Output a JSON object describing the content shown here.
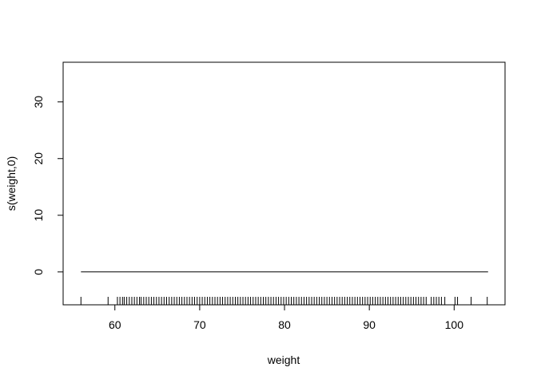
{
  "chart_data": {
    "type": "line",
    "title": "",
    "xlabel": "weight",
    "ylabel": "s(weight,0)",
    "xlim": [
      53.9,
      106
    ],
    "ylim": [
      -5.8,
      37
    ],
    "xticks": [
      60,
      70,
      80,
      90,
      100
    ],
    "yticks": [
      0,
      10,
      20,
      30
    ],
    "grid": false,
    "series": [
      {
        "x": [
          56,
          104
        ],
        "y": [
          0,
          0
        ]
      }
    ],
    "rug": [
      56,
      59.2,
      60.3,
      60.6,
      60.9,
      61.1,
      61.4,
      61.7,
      62.0,
      62.3,
      62.6,
      62.9,
      63.1,
      63.4,
      63.7,
      64.0,
      64.3,
      64.6,
      64.9,
      65.2,
      65.5,
      65.8,
      66.1,
      66.4,
      66.7,
      67.0,
      67.3,
      67.6,
      67.9,
      68.2,
      68.5,
      68.8,
      69.1,
      69.4,
      69.7,
      70.0,
      70.3,
      70.6,
      70.9,
      71.2,
      71.5,
      71.8,
      72.1,
      72.4,
      72.7,
      73.0,
      73.3,
      73.6,
      73.9,
      74.2,
      74.5,
      74.8,
      75.1,
      75.4,
      75.7,
      76.0,
      76.3,
      76.6,
      76.9,
      77.2,
      77.5,
      77.8,
      78.1,
      78.4,
      78.7,
      79.0,
      79.3,
      79.6,
      79.9,
      80.2,
      80.5,
      80.8,
      81.1,
      81.4,
      81.7,
      82.0,
      82.3,
      82.6,
      82.9,
      83.2,
      83.5,
      83.8,
      84.1,
      84.4,
      84.7,
      85.0,
      85.3,
      85.6,
      85.9,
      86.2,
      86.5,
      86.8,
      87.1,
      87.4,
      87.7,
      88.0,
      88.3,
      88.6,
      88.9,
      89.2,
      89.5,
      89.8,
      90.1,
      90.4,
      90.7,
      91.0,
      91.3,
      91.6,
      91.9,
      92.2,
      92.5,
      92.8,
      93.1,
      93.4,
      93.7,
      94.0,
      94.3,
      94.6,
      94.9,
      95.2,
      95.5,
      95.8,
      96.1,
      96.4,
      96.7,
      97.3,
      97.6,
      97.9,
      98.2,
      98.5,
      98.9,
      100.1,
      100.4,
      102.0,
      103.9
    ],
    "colors": {
      "line": "#000000",
      "axis": "#000000",
      "background": "#ffffff"
    }
  }
}
